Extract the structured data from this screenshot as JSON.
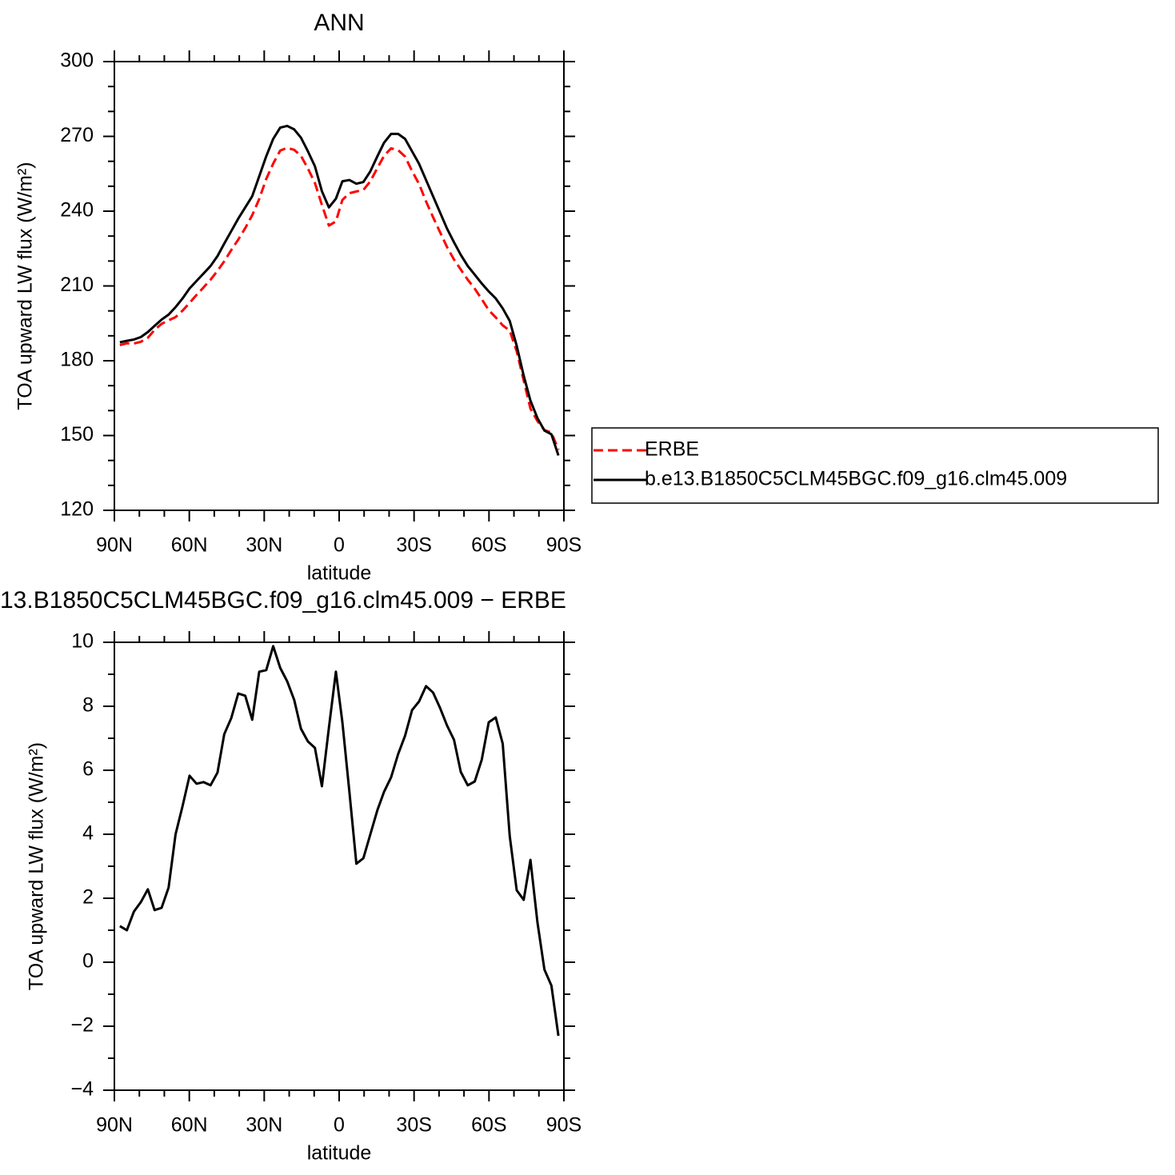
{
  "chart_data": [
    {
      "type": "line",
      "title": "ANN",
      "xlabel": "latitude",
      "ylabel": "TOA upward LW flux (W/m²)",
      "x": [
        87.8,
        85.0,
        82.2,
        79.4,
        76.6,
        73.9,
        71.1,
        68.3,
        65.5,
        62.7,
        59.9,
        57.1,
        54.3,
        51.5,
        48.7,
        46.0,
        43.2,
        40.4,
        37.6,
        34.8,
        32.0,
        29.2,
        26.4,
        23.6,
        20.8,
        18.0,
        15.3,
        12.5,
        9.7,
        6.9,
        4.1,
        1.3,
        -1.3,
        -4.1,
        -6.9,
        -9.7,
        -12.5,
        -15.3,
        -18.0,
        -20.8,
        -23.6,
        -26.4,
        -29.2,
        -32.0,
        -34.8,
        -37.6,
        -40.4,
        -43.2,
        -46.0,
        -48.7,
        -51.5,
        -54.3,
        -57.1,
        -59.9,
        -62.7,
        -65.5,
        -68.3,
        -71.1,
        -73.9,
        -76.6,
        -79.4,
        -82.2,
        -85.0,
        -87.8
      ],
      "series": [
        {
          "name": "ERBE",
          "color": "#ff0000",
          "dash": true,
          "values": [
            186.3,
            187.0,
            186.9,
            187.6,
            189.2,
            192.4,
            194.8,
            196.2,
            197.5,
            200.1,
            203.2,
            206.4,
            209.4,
            212.5,
            216.1,
            219.9,
            224.4,
            228.6,
            233.2,
            238.4,
            244.9,
            252.9,
            259.1,
            264.3,
            265.4,
            264.6,
            262.2,
            257.1,
            251.3,
            242.5,
            234.2,
            235.9,
            244.5,
            247.2,
            247.9,
            248.5,
            252.0,
            257.3,
            262.2,
            265.2,
            264.5,
            261.9,
            256.1,
            250.9,
            243.9,
            237.6,
            231.6,
            225.6,
            220.6,
            216.6,
            212.5,
            208.9,
            204.7,
            200.3,
            197.4,
            194.2,
            192.1,
            183.8,
            172.1,
            160.8,
            155.8,
            152.2,
            151.2,
            144.3
          ]
        },
        {
          "name": "b.e13.B1850C5CLM45BGC.f09_g16.clm45.009",
          "color": "#000000",
          "dash": false,
          "values": [
            187.4,
            188,
            188.5,
            189.5,
            191.5,
            194,
            196.5,
            198.5,
            201.5,
            205,
            209,
            212,
            215,
            218,
            222,
            227,
            232,
            237,
            241.5,
            246,
            254,
            262,
            269,
            273.5,
            274.2,
            272.8,
            269.5,
            264,
            258,
            248,
            241.5,
            245,
            252,
            252.5,
            251,
            251.7,
            256,
            262,
            267.5,
            271,
            271,
            269,
            264,
            259,
            252.5,
            246,
            239.5,
            233,
            227.5,
            222.5,
            218,
            214.5,
            211,
            207.8,
            205,
            201,
            196,
            186,
            174,
            164,
            157,
            152,
            150.5,
            142
          ]
        }
      ],
      "xlim": [
        90,
        -90
      ],
      "xticks": [
        {
          "value": 90,
          "label": "90N"
        },
        {
          "value": 60,
          "label": "60N"
        },
        {
          "value": 30,
          "label": "30N"
        },
        0,
        {
          "value": -30,
          "label": "30S"
        },
        {
          "value": -60,
          "label": "60S"
        },
        {
          "value": -90,
          "label": "90S"
        }
      ],
      "ylim": [
        120,
        300
      ],
      "yticks": [
        120,
        150,
        180,
        210,
        240,
        270,
        300
      ],
      "legend": "right"
    },
    {
      "type": "line",
      "title": "13.B1850C5CLM45BGC.f09_g16.clm45.009 − ERBE",
      "xlabel": "latitude",
      "ylabel": "TOA upward LW flux (W/m²)",
      "x": [
        87.8,
        85.0,
        82.2,
        79.4,
        76.6,
        73.9,
        71.1,
        68.3,
        65.5,
        62.7,
        59.9,
        57.1,
        54.3,
        51.5,
        48.7,
        46.0,
        43.2,
        40.4,
        37.6,
        34.8,
        32.0,
        29.2,
        26.4,
        23.6,
        20.8,
        18.0,
        15.3,
        12.5,
        9.7,
        6.9,
        4.1,
        1.3,
        -1.3,
        -4.1,
        -6.9,
        -9.7,
        -12.5,
        -15.3,
        -18.0,
        -20.8,
        -23.6,
        -26.4,
        -29.2,
        -32.0,
        -34.8,
        -37.6,
        -40.4,
        -43.2,
        -46.0,
        -48.7,
        -51.5,
        -54.3,
        -57.1,
        -59.9,
        -62.7,
        -65.5,
        -68.3,
        -71.1,
        -73.9,
        -76.6,
        -79.4,
        -82.2,
        -85.0,
        -87.8
      ],
      "values": [
        1.13,
        1.0,
        1.58,
        1.88,
        2.28,
        1.63,
        1.7,
        2.33,
        4.0,
        4.88,
        5.83,
        5.58,
        5.63,
        5.53,
        5.93,
        7.13,
        7.63,
        8.4,
        8.33,
        7.58,
        9.08,
        9.13,
        9.88,
        9.2,
        8.78,
        8.2,
        7.3,
        6.9,
        6.7,
        5.5,
        7.33,
        9.08,
        7.5,
        5.33,
        3.08,
        3.25,
        4.0,
        4.75,
        5.33,
        5.78,
        6.5,
        7.08,
        7.88,
        8.15,
        8.63,
        8.43,
        7.95,
        7.4,
        6.95,
        5.95,
        5.53,
        5.65,
        6.33,
        7.5,
        7.65,
        6.83,
        3.95,
        2.25,
        1.95,
        3.2,
        1.25,
        -0.23,
        -0.73,
        -2.3
      ],
      "color": "#000000",
      "xlim": [
        90,
        -90
      ],
      "xticks": [
        {
          "value": 90,
          "label": "90N"
        },
        {
          "value": 60,
          "label": "60N"
        },
        {
          "value": 30,
          "label": "30N"
        },
        0,
        {
          "value": -30,
          "label": "30S"
        },
        {
          "value": -60,
          "label": "60S"
        },
        {
          "value": -90,
          "label": "90S"
        }
      ],
      "ylim": [
        -4,
        10
      ],
      "yticks": [
        {
          "value": -4,
          "label": "−4"
        },
        {
          "value": -2,
          "label": "−2"
        },
        0,
        2,
        4,
        6,
        8,
        10
      ]
    }
  ]
}
